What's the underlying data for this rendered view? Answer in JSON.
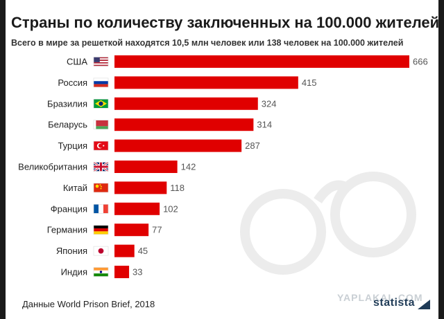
{
  "chart_data": {
    "type": "bar",
    "orientation": "horizontal",
    "title": "Страны по количеству заключенных на 100.000 жителей",
    "subtitle": "Всего в мире за решеткой находятся 10,5 млн человек или 138 человек на 100.000 жителей",
    "categories": [
      "США",
      "Россия",
      "Бразилия",
      "Беларусь",
      "Турция",
      "Великобритания",
      "Китай",
      "Франция",
      "Германия",
      "Япония",
      "Индия"
    ],
    "values": [
      666,
      415,
      324,
      314,
      287,
      142,
      118,
      102,
      77,
      45,
      33
    ],
    "xlim": [
      0,
      666
    ],
    "grid": false,
    "legend": "none",
    "bar_color": "#e00000",
    "flags": [
      "us-flag-icon",
      "russia-flag-icon",
      "brazil-flag-icon",
      "belarus-flag-icon",
      "turkey-flag-icon",
      "uk-flag-icon",
      "china-flag-icon",
      "france-flag-icon",
      "germany-flag-icon",
      "japan-flag-icon",
      "india-flag-icon"
    ]
  },
  "source": "Данные World Prison Brief, 2018",
  "watermark": "YAPLAKAL.COM",
  "logo": "statista",
  "colors": {
    "bar": "#e00000",
    "background": "#ffffff",
    "logo": "#1f3b57"
  }
}
